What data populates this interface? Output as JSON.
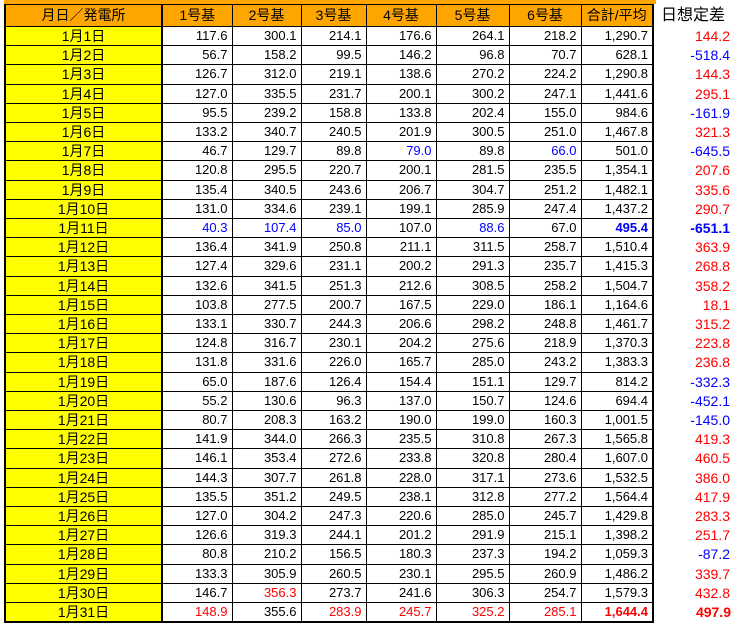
{
  "colors": {
    "header_bg": "#FFA500",
    "date_bg": "#FFFF00",
    "max_text": "#FF0000",
    "min_text": "#0000FF",
    "default_text": "#000000",
    "grid": "#000000"
  },
  "table": {
    "date_header": "月日／発電所",
    "unit_headers": [
      "1号基",
      "2号基",
      "3号基",
      "4号基",
      "5号基",
      "6号基"
    ],
    "total_header": "合計/平均",
    "diff_header": "日想定差",
    "rows": [
      {
        "date": "1月1日",
        "values": [
          "117.6",
          "300.1",
          "214.1",
          "176.6",
          "264.1",
          "218.2"
        ],
        "total": "1,290.7",
        "diff": "144.2",
        "diff_style": "r"
      },
      {
        "date": "1月2日",
        "values": [
          "56.7",
          "158.2",
          "99.5",
          "146.2",
          "96.8",
          "70.7"
        ],
        "total": "628.1",
        "diff": "-518.4",
        "diff_style": "b"
      },
      {
        "date": "1月3日",
        "values": [
          "126.7",
          "312.0",
          "219.1",
          "138.6",
          "270.2",
          "224.2"
        ],
        "total": "1,290.8",
        "diff": "144.3",
        "diff_style": "r"
      },
      {
        "date": "1月4日",
        "values": [
          "127.0",
          "335.5",
          "231.7",
          "200.1",
          "300.2",
          "247.1"
        ],
        "total": "1,441.6",
        "diff": "295.1",
        "diff_style": "r"
      },
      {
        "date": "1月5日",
        "values": [
          "95.5",
          "239.2",
          "158.8",
          "133.8",
          "202.4",
          "155.0"
        ],
        "total": "984.6",
        "diff": "-161.9",
        "diff_style": "b"
      },
      {
        "date": "1月6日",
        "values": [
          "133.2",
          "340.7",
          "240.5",
          "201.9",
          "300.5",
          "251.0"
        ],
        "total": "1,467.8",
        "diff": "321.3",
        "diff_style": "r"
      },
      {
        "date": "1月7日",
        "values": [
          "46.7",
          "129.7",
          "89.8",
          "79.0",
          "89.8",
          "66.0"
        ],
        "value_styles": [
          "k",
          "k",
          "k",
          "b",
          "k",
          "b"
        ],
        "total": "501.0",
        "diff": "-645.5",
        "diff_style": "b"
      },
      {
        "date": "1月8日",
        "values": [
          "120.8",
          "295.5",
          "220.7",
          "200.1",
          "281.5",
          "235.5"
        ],
        "total": "1,354.1",
        "diff": "207.6",
        "diff_style": "r"
      },
      {
        "date": "1月9日",
        "values": [
          "135.4",
          "340.5",
          "243.6",
          "206.7",
          "304.7",
          "251.2"
        ],
        "total": "1,482.1",
        "diff": "335.6",
        "diff_style": "r"
      },
      {
        "date": "1月10日",
        "values": [
          "131.0",
          "334.6",
          "239.1",
          "199.1",
          "285.9",
          "247.4"
        ],
        "total": "1,437.2",
        "diff": "290.7",
        "diff_style": "r"
      },
      {
        "date": "1月11日",
        "values": [
          "40.3",
          "107.4",
          "85.0",
          "107.0",
          "88.6",
          "67.0"
        ],
        "value_styles": [
          "b",
          "b",
          "b",
          "k",
          "b",
          "k"
        ],
        "total": "495.4",
        "total_style": "B",
        "diff": "-651.1",
        "diff_style": "B"
      },
      {
        "date": "1月12日",
        "values": [
          "136.4",
          "341.9",
          "250.8",
          "211.1",
          "311.5",
          "258.7"
        ],
        "total": "1,510.4",
        "diff": "363.9",
        "diff_style": "r"
      },
      {
        "date": "1月13日",
        "values": [
          "127.4",
          "329.6",
          "231.1",
          "200.2",
          "291.3",
          "235.7"
        ],
        "total": "1,415.3",
        "diff": "268.8",
        "diff_style": "r"
      },
      {
        "date": "1月14日",
        "values": [
          "132.6",
          "341.5",
          "251.3",
          "212.6",
          "308.5",
          "258.2"
        ],
        "total": "1,504.7",
        "diff": "358.2",
        "diff_style": "r"
      },
      {
        "date": "1月15日",
        "values": [
          "103.8",
          "277.5",
          "200.7",
          "167.5",
          "229.0",
          "186.1"
        ],
        "total": "1,164.6",
        "diff": "18.1",
        "diff_style": "r"
      },
      {
        "date": "1月16日",
        "values": [
          "133.1",
          "330.7",
          "244.3",
          "206.6",
          "298.2",
          "248.8"
        ],
        "total": "1,461.7",
        "diff": "315.2",
        "diff_style": "r"
      },
      {
        "date": "1月17日",
        "values": [
          "124.8",
          "316.7",
          "230.1",
          "204.2",
          "275.6",
          "218.9"
        ],
        "total": "1,370.3",
        "diff": "223.8",
        "diff_style": "r"
      },
      {
        "date": "1月18日",
        "values": [
          "131.8",
          "331.6",
          "226.0",
          "165.7",
          "285.0",
          "243.2"
        ],
        "total": "1,383.3",
        "diff": "236.8",
        "diff_style": "r"
      },
      {
        "date": "1月19日",
        "values": [
          "65.0",
          "187.6",
          "126.4",
          "154.4",
          "151.1",
          "129.7"
        ],
        "total": "814.2",
        "diff": "-332.3",
        "diff_style": "b"
      },
      {
        "date": "1月20日",
        "values": [
          "55.2",
          "130.6",
          "96.3",
          "137.0",
          "150.7",
          "124.6"
        ],
        "total": "694.4",
        "diff": "-452.1",
        "diff_style": "b"
      },
      {
        "date": "1月21日",
        "values": [
          "80.7",
          "208.3",
          "163.2",
          "190.0",
          "199.0",
          "160.3"
        ],
        "total": "1,001.5",
        "diff": "-145.0",
        "diff_style": "b"
      },
      {
        "date": "1月22日",
        "values": [
          "141.9",
          "344.0",
          "266.3",
          "235.5",
          "310.8",
          "267.3"
        ],
        "total": "1,565.8",
        "diff": "419.3",
        "diff_style": "r"
      },
      {
        "date": "1月23日",
        "values": [
          "146.1",
          "353.4",
          "272.6",
          "233.8",
          "320.8",
          "280.4"
        ],
        "total": "1,607.0",
        "diff": "460.5",
        "diff_style": "r"
      },
      {
        "date": "1月24日",
        "values": [
          "144.3",
          "307.7",
          "261.8",
          "228.0",
          "317.1",
          "273.6"
        ],
        "total": "1,532.5",
        "diff": "386.0",
        "diff_style": "r"
      },
      {
        "date": "1月25日",
        "values": [
          "135.5",
          "351.2",
          "249.5",
          "238.1",
          "312.8",
          "277.2"
        ],
        "total": "1,564.4",
        "diff": "417.9",
        "diff_style": "r"
      },
      {
        "date": "1月26日",
        "values": [
          "127.0",
          "304.2",
          "247.3",
          "220.6",
          "285.0",
          "245.7"
        ],
        "total": "1,429.8",
        "diff": "283.3",
        "diff_style": "r"
      },
      {
        "date": "1月27日",
        "values": [
          "126.6",
          "319.3",
          "244.1",
          "201.2",
          "291.9",
          "215.1"
        ],
        "total": "1,398.2",
        "diff": "251.7",
        "diff_style": "r"
      },
      {
        "date": "1月28日",
        "values": [
          "80.8",
          "210.2",
          "156.5",
          "180.3",
          "237.3",
          "194.2"
        ],
        "total": "1,059.3",
        "diff": "-87.2",
        "diff_style": "b"
      },
      {
        "date": "1月29日",
        "values": [
          "133.3",
          "305.9",
          "260.5",
          "230.1",
          "295.5",
          "260.9"
        ],
        "total": "1,486.2",
        "diff": "339.7",
        "diff_style": "r"
      },
      {
        "date": "1月30日",
        "values": [
          "146.7",
          "356.3",
          "273.7",
          "241.6",
          "306.3",
          "254.7"
        ],
        "value_styles": [
          "k",
          "r",
          "k",
          "k",
          "k",
          "k"
        ],
        "total": "1,579.3",
        "diff": "432.8",
        "diff_style": "r"
      },
      {
        "date": "1月31日",
        "values": [
          "148.9",
          "355.6",
          "283.9",
          "245.7",
          "325.2",
          "285.1"
        ],
        "value_styles": [
          "r",
          "k",
          "r",
          "r",
          "r",
          "r"
        ],
        "total": "1,644.4",
        "total_style": "R",
        "diff": "497.9",
        "diff_style": "R"
      }
    ]
  }
}
